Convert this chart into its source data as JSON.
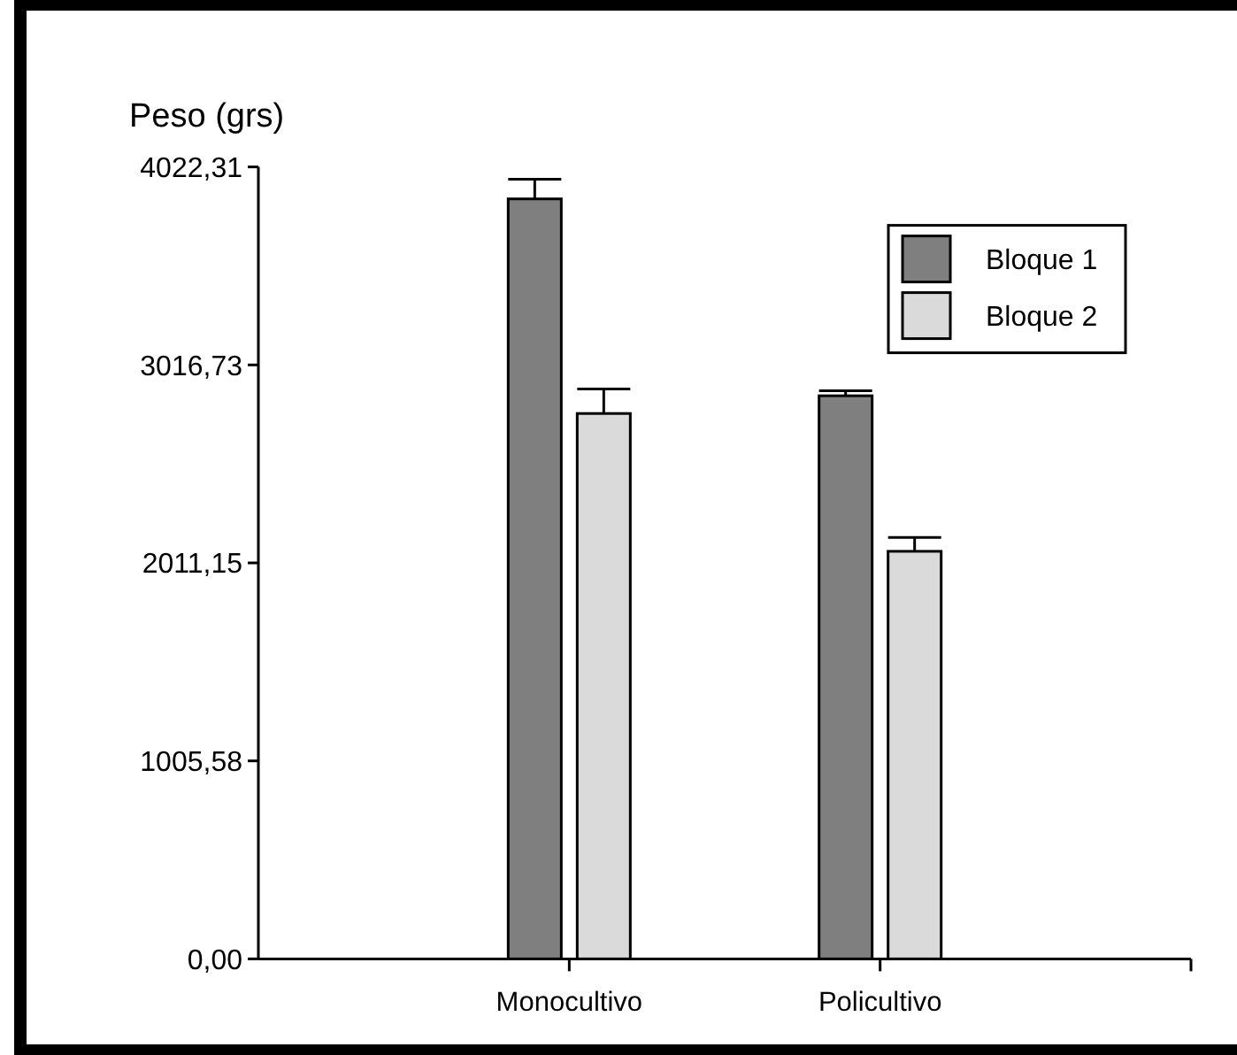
{
  "chart_data": {
    "type": "bar",
    "ylabel": "Peso (grs)",
    "categories": [
      "Monocultivo",
      "Policultivo"
    ],
    "series": [
      {
        "name": "Bloque 1",
        "color": "#7f7f7f",
        "values": [
          3860,
          2860
        ],
        "errors": [
          100,
          25
        ]
      },
      {
        "name": "Bloque 2",
        "color": "#dadada",
        "values": [
          2770,
          2070
        ],
        "errors": [
          125,
          70
        ]
      }
    ],
    "ylim": [
      0,
      4022.31
    ],
    "yticks": [
      {
        "value": 0,
        "label": "0,00"
      },
      {
        "value": 1005.58,
        "label": "1005,58"
      },
      {
        "value": 2011.15,
        "label": "2011,15"
      },
      {
        "value": 3016.73,
        "label": "3016,73"
      },
      {
        "value": 4022.31,
        "label": "4022,31"
      }
    ],
    "legend": "top right"
  }
}
